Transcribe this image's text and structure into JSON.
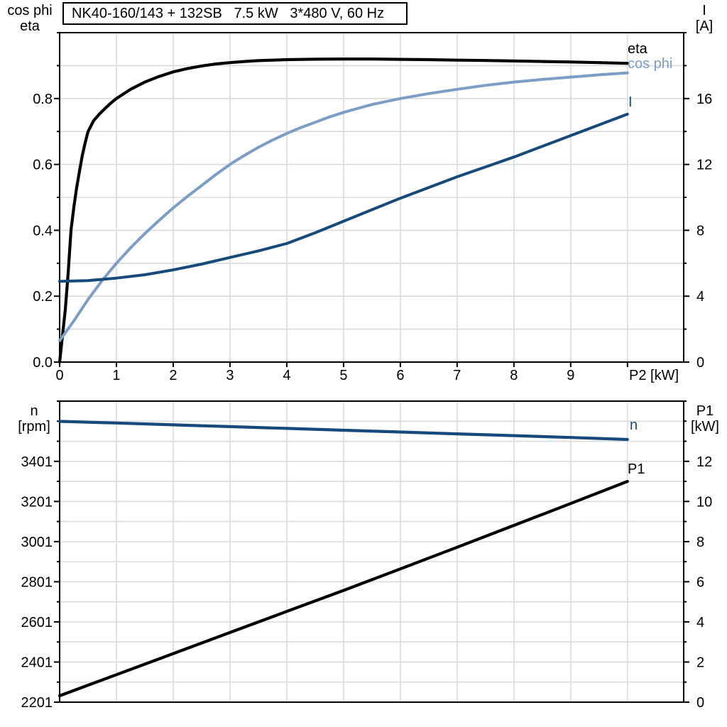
{
  "title_box": {
    "text": "NK40-160/143 + 132SB   7.5 kW   3*480 V, 60 Hz"
  },
  "colors": {
    "black": "#000000",
    "dark_blue": "#17497b",
    "light_blue": "#7c9dc4",
    "grid": "#d9dbdd",
    "axis": "#000000",
    "background": "#ffffff"
  },
  "chart_data": [
    {
      "id": "motor-electrical-curves",
      "type": "line",
      "title": "NK40-160/143 + 132SB   7.5 kW   3*480 V, 60 Hz",
      "x_axis": {
        "label": "P2 [kW]",
        "min": 0,
        "max": 10.99,
        "grid_step": 1,
        "tick_values": [
          0,
          1,
          2,
          3,
          4,
          5,
          6,
          7,
          8,
          9
        ],
        "tick_labels": [
          "0",
          "1",
          "2",
          "3",
          "4",
          "5",
          "6",
          "7",
          "8",
          "9"
        ]
      },
      "y_left": {
        "title_lines": [
          "cos phi",
          "eta"
        ],
        "min": 0,
        "max": 1.0,
        "grid_step": 0.1,
        "tick_values": [
          0,
          0.2,
          0.4,
          0.6,
          0.8
        ],
        "tick_labels": [
          "0.0",
          "0.2",
          "0.4",
          "0.6",
          "0.8"
        ]
      },
      "y_right": {
        "title_lines": [
          "I",
          "[A]"
        ],
        "min": 0,
        "max": 20,
        "grid_step": 2,
        "tick_values": [
          0,
          4,
          8,
          12,
          16
        ],
        "tick_labels": [
          "0",
          "4",
          "8",
          "12",
          "16"
        ]
      },
      "series": [
        {
          "name": "eta",
          "axis": "left",
          "color_key": "black",
          "width": 4.2,
          "points": [
            [
              0,
              0
            ],
            [
              0.05,
              0.08
            ],
            [
              0.1,
              0.16
            ],
            [
              0.15,
              0.27
            ],
            [
              0.2,
              0.4
            ],
            [
              0.25,
              0.47
            ],
            [
              0.3,
              0.53
            ],
            [
              0.35,
              0.58
            ],
            [
              0.4,
              0.628
            ],
            [
              0.45,
              0.666
            ],
            [
              0.5,
              0.7
            ],
            [
              0.6,
              0.733
            ],
            [
              0.7,
              0.753
            ],
            [
              0.8,
              0.77
            ],
            [
              0.9,
              0.786
            ],
            [
              1,
              0.8
            ],
            [
              1.25,
              0.828
            ],
            [
              1.5,
              0.85
            ],
            [
              1.75,
              0.867
            ],
            [
              2,
              0.881
            ],
            [
              2.25,
              0.891
            ],
            [
              2.5,
              0.899
            ],
            [
              2.75,
              0.905
            ],
            [
              3,
              0.909
            ],
            [
              3.25,
              0.9125
            ],
            [
              3.5,
              0.915
            ],
            [
              4,
              0.918
            ],
            [
              4.5,
              0.9195
            ],
            [
              5,
              0.92
            ],
            [
              5.5,
              0.92
            ],
            [
              6,
              0.919
            ],
            [
              6.5,
              0.918
            ],
            [
              7,
              0.9165
            ],
            [
              7.5,
              0.9155
            ],
            [
              8,
              0.914
            ],
            [
              8.5,
              0.9125
            ],
            [
              9,
              0.911
            ],
            [
              9.5,
              0.909
            ],
            [
              10,
              0.907
            ]
          ]
        },
        {
          "name": "cos phi",
          "axis": "left",
          "color_key": "light_blue",
          "width": 4,
          "points": [
            [
              0,
              0.065
            ],
            [
              0.25,
              0.125
            ],
            [
              0.5,
              0.19
            ],
            [
              0.75,
              0.248
            ],
            [
              1,
              0.3
            ],
            [
              1.25,
              0.347
            ],
            [
              1.5,
              0.39
            ],
            [
              1.75,
              0.43
            ],
            [
              2,
              0.468
            ],
            [
              2.25,
              0.503
            ],
            [
              2.5,
              0.536
            ],
            [
              2.75,
              0.569
            ],
            [
              3,
              0.6
            ],
            [
              3.25,
              0.627
            ],
            [
              3.5,
              0.652
            ],
            [
              3.75,
              0.674
            ],
            [
              4,
              0.694
            ],
            [
              4.25,
              0.712
            ],
            [
              4.5,
              0.728
            ],
            [
              4.75,
              0.744
            ],
            [
              5,
              0.758
            ],
            [
              5.25,
              0.77
            ],
            [
              5.5,
              0.782
            ],
            [
              6,
              0.8
            ],
            [
              6.5,
              0.815
            ],
            [
              7,
              0.828
            ],
            [
              7.5,
              0.84
            ],
            [
              8,
              0.85
            ],
            [
              8.5,
              0.858
            ],
            [
              9,
              0.865
            ],
            [
              9.5,
              0.872
            ],
            [
              10,
              0.878
            ]
          ]
        },
        {
          "name": "I",
          "axis": "right",
          "color_key": "dark_blue",
          "width": 4,
          "points": [
            [
              0,
              4.9
            ],
            [
              0.5,
              4.95
            ],
            [
              1,
              5.1
            ],
            [
              1.5,
              5.3
            ],
            [
              2,
              5.6
            ],
            [
              2.5,
              5.95
            ],
            [
              3,
              6.35
            ],
            [
              3.5,
              6.75
            ],
            [
              4,
              7.2
            ],
            [
              4.5,
              7.85
            ],
            [
              5,
              8.55
            ],
            [
              5.5,
              9.25
            ],
            [
              6,
              9.95
            ],
            [
              6.5,
              10.6
            ],
            [
              7,
              11.25
            ],
            [
              7.5,
              11.85
            ],
            [
              8,
              12.45
            ],
            [
              8.5,
              13.1
            ],
            [
              9,
              13.75
            ],
            [
              9.5,
              14.4
            ],
            [
              10,
              15.05
            ]
          ]
        }
      ]
    },
    {
      "id": "motor-speed-power-curves",
      "type": "line",
      "x_axis": {
        "label": null,
        "min": 0,
        "max": 10.99,
        "grid_step": 1,
        "tick_values": [],
        "tick_labels": []
      },
      "y_left": {
        "title_lines": [
          "n",
          "[rpm]"
        ],
        "min": 2201,
        "max": 3701,
        "grid_step": 100,
        "tick_values": [
          2201,
          2401,
          2601,
          2801,
          3001,
          3201,
          3401
        ],
        "tick_labels": [
          "2201",
          "2401",
          "2601",
          "2801",
          "3001",
          "3201",
          "3401"
        ]
      },
      "y_right": {
        "title_lines": [
          "P1",
          "[kW]"
        ],
        "min": 0,
        "max": 15,
        "grid_step": 1,
        "tick_values": [
          0,
          2,
          4,
          6,
          8,
          10,
          12
        ],
        "tick_labels": [
          "0",
          "2",
          "4",
          "6",
          "8",
          "10",
          "12"
        ]
      },
      "series": [
        {
          "name": "n",
          "axis": "left",
          "color_key": "dark_blue",
          "width": 4.2,
          "points": [
            [
              0,
              3600
            ],
            [
              1,
              3592
            ],
            [
              2,
              3583
            ],
            [
              3,
              3574
            ],
            [
              4,
              3565
            ],
            [
              5,
              3556
            ],
            [
              6,
              3547
            ],
            [
              7,
              3538
            ],
            [
              8,
              3529
            ],
            [
              9,
              3520
            ],
            [
              10,
              3510
            ]
          ]
        },
        {
          "name": "P1",
          "axis": "right",
          "color_key": "black",
          "width": 4.2,
          "points": [
            [
              0,
              0.32
            ],
            [
              1,
              1.37
            ],
            [
              2,
              2.42
            ],
            [
              3,
              3.47
            ],
            [
              4,
              4.52
            ],
            [
              5,
              5.57
            ],
            [
              6,
              6.64
            ],
            [
              7,
              7.72
            ],
            [
              8,
              8.81
            ],
            [
              9,
              9.9
            ],
            [
              10,
              11.0
            ]
          ]
        }
      ]
    }
  ]
}
